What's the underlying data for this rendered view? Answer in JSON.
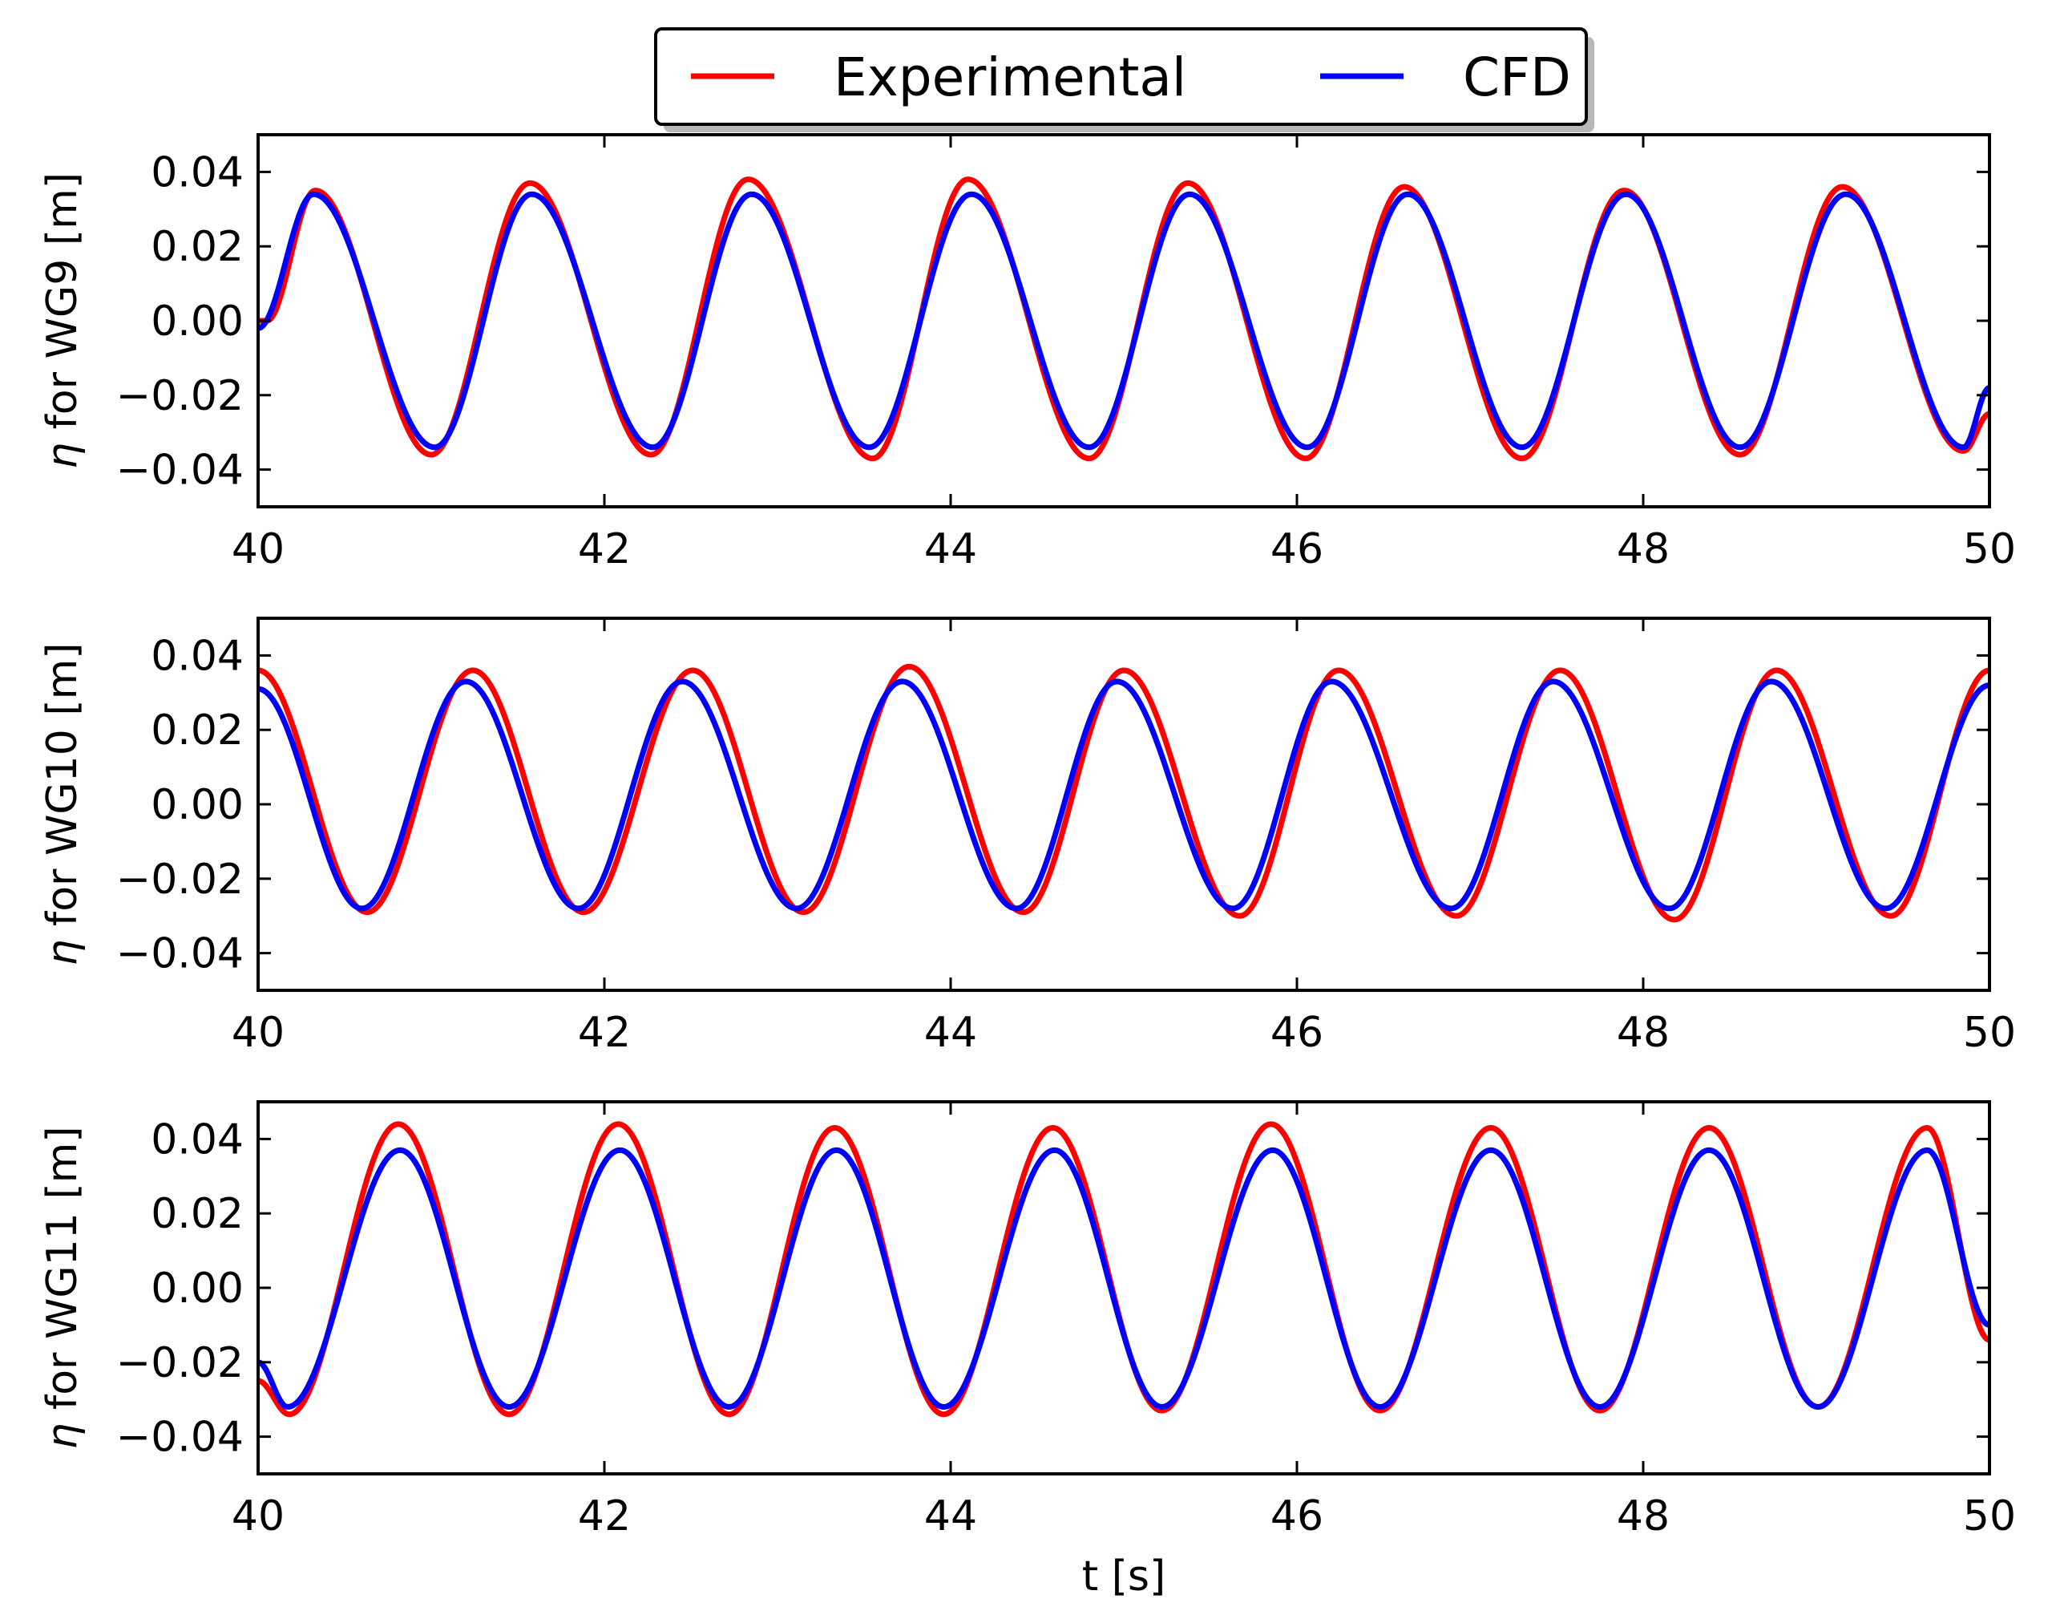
{
  "legend": {
    "entries": [
      {
        "label": "Experimental",
        "color": "#ff0000"
      },
      {
        "label": "CFD",
        "color": "#0000ff"
      }
    ],
    "placement": "top-center"
  },
  "chart_data": [
    {
      "type": "line",
      "panel": "WG9",
      "ylabel_symbol": "η",
      "ylabel_text": " for WG9 [m]",
      "xlabel": "",
      "xlim": [
        40,
        50
      ],
      "ylim": [
        -0.05,
        0.05
      ],
      "xticks": [
        40,
        42,
        44,
        46,
        48,
        50
      ],
      "yticks": [
        0.04,
        0.02,
        0.0,
        -0.02,
        -0.04
      ],
      "xtick_labels": [
        "40",
        "42",
        "44",
        "46",
        "48",
        "50"
      ],
      "ytick_labels": [
        "0.04",
        "0.02",
        "0.00",
        "−0.02",
        "−0.04"
      ],
      "series": [
        {
          "name": "Experimental",
          "color": "#ff0000",
          "model": {
            "type": "wave",
            "x": [
              40.05,
              40.33,
              41.0,
              41.57,
              42.27,
              42.83,
              43.55,
              44.1,
              44.8,
              45.37,
              46.05,
              46.62,
              47.3,
              47.89,
              48.56,
              49.15,
              49.85,
              50.0
            ],
            "y": [
              0.0,
              0.035,
              -0.036,
              0.037,
              -0.036,
              0.038,
              -0.037,
              0.038,
              -0.037,
              0.037,
              -0.037,
              0.036,
              -0.037,
              0.035,
              -0.036,
              0.036,
              -0.035,
              -0.025
            ]
          }
        },
        {
          "name": "CFD",
          "color": "#0000ff",
          "model": {
            "type": "wave",
            "x": [
              40.0,
              40.32,
              41.02,
              41.58,
              42.28,
              42.85,
              43.53,
              44.12,
              44.8,
              45.38,
              46.06,
              46.64,
              47.3,
              47.9,
              48.56,
              49.17,
              49.85,
              50.0
            ],
            "y": [
              -0.002,
              0.034,
              -0.034,
              0.034,
              -0.034,
              0.034,
              -0.034,
              0.034,
              -0.034,
              0.034,
              -0.034,
              0.034,
              -0.034,
              0.034,
              -0.034,
              0.034,
              -0.034,
              -0.018
            ]
          }
        }
      ]
    },
    {
      "type": "line",
      "panel": "WG10",
      "ylabel_symbol": "η",
      "ylabel_text": " for WG10 [m]",
      "xlabel": "",
      "xlim": [
        40,
        50
      ],
      "ylim": [
        -0.05,
        0.05
      ],
      "xticks": [
        40,
        42,
        44,
        46,
        48,
        50
      ],
      "yticks": [
        0.04,
        0.02,
        0.0,
        -0.02,
        -0.04
      ],
      "xtick_labels": [
        "40",
        "42",
        "44",
        "46",
        "48",
        "50"
      ],
      "ytick_labels": [
        "0.04",
        "0.02",
        "0.00",
        "−0.02",
        "−0.04"
      ],
      "series": [
        {
          "name": "Experimental",
          "color": "#ff0000",
          "model": {
            "type": "wave",
            "x": [
              40.0,
              40.63,
              41.24,
              41.88,
              42.51,
              43.15,
              43.76,
              44.42,
              45.0,
              45.67,
              46.24,
              46.92,
              47.52,
              48.18,
              48.77,
              49.43,
              50.0
            ],
            "y": [
              0.036,
              -0.029,
              0.036,
              -0.029,
              0.036,
              -0.029,
              0.037,
              -0.029,
              0.036,
              -0.03,
              0.036,
              -0.03,
              0.036,
              -0.031,
              0.036,
              -0.03,
              0.036
            ]
          }
        },
        {
          "name": "CFD",
          "color": "#0000ff",
          "model": {
            "type": "wave",
            "x": [
              40.0,
              40.6,
              41.2,
              41.85,
              42.45,
              43.11,
              43.72,
              44.38,
              44.96,
              45.63,
              46.2,
              46.89,
              47.48,
              48.15,
              48.74,
              49.4,
              50.0
            ],
            "y": [
              0.031,
              -0.028,
              0.033,
              -0.028,
              0.033,
              -0.028,
              0.033,
              -0.028,
              0.033,
              -0.028,
              0.033,
              -0.028,
              0.033,
              -0.028,
              0.033,
              -0.028,
              0.032
            ]
          }
        }
      ]
    },
    {
      "type": "line",
      "panel": "WG11",
      "ylabel_symbol": "η",
      "ylabel_text": " for WG11 [m]",
      "xlabel": "t [s]",
      "xlim": [
        40,
        50
      ],
      "ylim": [
        -0.05,
        0.05
      ],
      "xticks": [
        40,
        42,
        44,
        46,
        48,
        50
      ],
      "yticks": [
        0.04,
        0.02,
        0.0,
        -0.02,
        -0.04
      ],
      "xtick_labels": [
        "40",
        "42",
        "44",
        "46",
        "48",
        "50"
      ],
      "ytick_labels": [
        "0.04",
        "0.02",
        "0.00",
        "−0.02",
        "−0.04"
      ],
      "series": [
        {
          "name": "Experimental",
          "color": "#ff0000",
          "model": {
            "type": "wave",
            "x": [
              40.0,
              40.18,
              40.81,
              41.45,
              42.08,
              42.72,
              43.33,
              43.96,
              44.59,
              45.22,
              45.85,
              46.48,
              47.12,
              47.75,
              48.38,
              49.01,
              49.64,
              50.0
            ],
            "y": [
              -0.025,
              -0.034,
              0.044,
              -0.034,
              0.044,
              -0.034,
              0.043,
              -0.034,
              0.043,
              -0.033,
              0.044,
              -0.033,
              0.043,
              -0.033,
              0.043,
              -0.032,
              0.043,
              -0.014
            ]
          }
        },
        {
          "name": "CFD",
          "color": "#0000ff",
          "model": {
            "type": "wave",
            "x": [
              40.0,
              40.17,
              40.82,
              41.45,
              42.09,
              42.72,
              43.34,
              43.96,
              44.6,
              45.22,
              45.86,
              46.48,
              47.12,
              47.75,
              48.38,
              49.01,
              49.64,
              50.0
            ],
            "y": [
              -0.02,
              -0.032,
              0.037,
              -0.032,
              0.037,
              -0.032,
              0.037,
              -0.032,
              0.037,
              -0.032,
              0.037,
              -0.032,
              0.037,
              -0.032,
              0.037,
              -0.032,
              0.037,
              -0.01
            ]
          }
        }
      ]
    }
  ]
}
